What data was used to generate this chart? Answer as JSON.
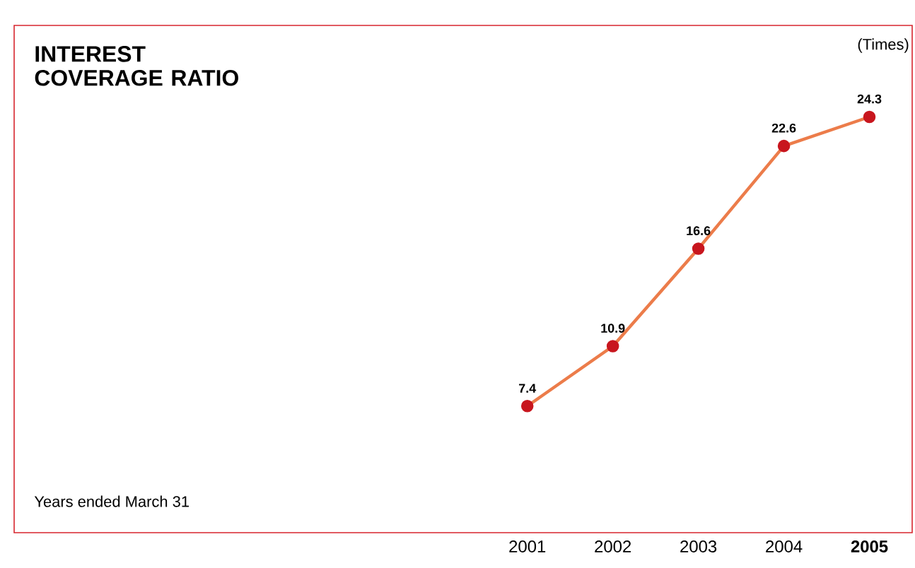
{
  "chart_data": {
    "type": "line",
    "title": "INTEREST COVERAGE RATIO",
    "ylabel": "(Times)",
    "categories": [
      "2001",
      "2002",
      "2003",
      "2004",
      "2005"
    ],
    "series": [
      {
        "color": "#c8161e",
        "values": [
          7.4,
          10.9,
          16.6,
          22.6,
          24.3
        ]
      }
    ],
    "data_labels": true,
    "marker": "circle",
    "line_style": "solid",
    "grid": false,
    "annotations": [
      "Years ended March 31"
    ]
  }
}
